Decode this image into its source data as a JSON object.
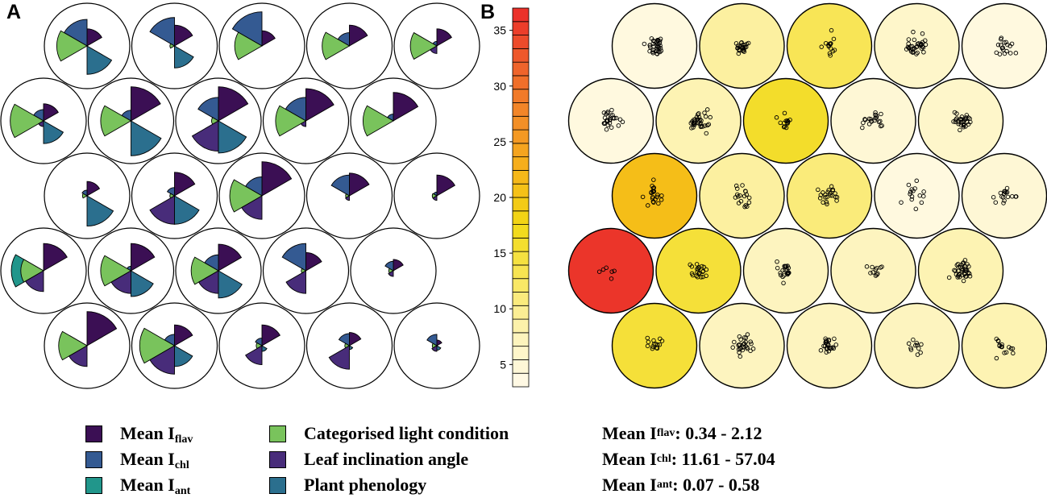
{
  "panel_labels": {
    "a": "A",
    "b": "B"
  },
  "colors": {
    "flav": "#3b0f54",
    "chl": "#345a92",
    "ant": "#21968b",
    "light": "#79c35c",
    "inclination": "#482c7a",
    "phenology": "#2b6f8e"
  },
  "legend": {
    "items": [
      {
        "key": "flav",
        "prefix": "Mean I",
        "sub": "flav"
      },
      {
        "key": "chl",
        "prefix": "Mean I",
        "sub": "chl"
      },
      {
        "key": "ant",
        "prefix": "Mean I",
        "sub": "ant"
      },
      {
        "key": "light",
        "prefix": "Categorised light condition",
        "sub": ""
      },
      {
        "key": "inclination",
        "prefix": "Leaf inclination angle",
        "sub": ""
      },
      {
        "key": "phenology",
        "prefix": "Plant phenology",
        "sub": ""
      }
    ]
  },
  "ranges": [
    {
      "prefix": "Mean I",
      "sub": "flav",
      "value": ": 0.34 - 2.12"
    },
    {
      "prefix": "Mean I",
      "sub": "chl",
      "value": ": 11.61 - 57.04"
    },
    {
      "prefix": "Mean I",
      "sub": "ant",
      "value": ": 0.07 - 0.58"
    }
  ],
  "colorbar": {
    "min": 3,
    "max": 37,
    "ticks": [
      5,
      10,
      15,
      20,
      25,
      30,
      35
    ],
    "tick_labels": [
      "5",
      "10",
      "15",
      "20",
      "25",
      "30",
      "35"
    ],
    "stops": [
      "#fffaea",
      "#fdf3b6",
      "#f8e65a",
      "#f1d914",
      "#f7b31a",
      "#f28a28",
      "#ee5f2b",
      "#ea2a2a"
    ]
  },
  "chart_data": {
    "type": "self-organizing-map",
    "panel_a": {
      "type": "fan",
      "variables": [
        "flav",
        "chl",
        "ant",
        "light",
        "inclination",
        "phenology"
      ],
      "nodes": [
        [
          {
            "flav": 0.45,
            "chl": 0.7,
            "ant": 0,
            "light": 0.8,
            "inclination": 0,
            "phenology": 0.75
          },
          {
            "flav": 0.55,
            "chl": 0.75,
            "ant": 0,
            "light": 0.12,
            "inclination": 0,
            "phenology": 0.58
          },
          {
            "flav": 0.4,
            "chl": 0.9,
            "ant": 0,
            "light": 0.72,
            "inclination": 0,
            "phenology": 0
          },
          {
            "flav": 0.55,
            "chl": 0.35,
            "ant": 0,
            "light": 0.72,
            "inclination": 0,
            "phenology": 0
          },
          {
            "flav": 0.45,
            "chl": 0.12,
            "ant": 0.1,
            "light": 0.7,
            "inclination": 0.2,
            "phenology": 0
          }
        ],
        [
          {
            "flav": 0.45,
            "chl": 0.3,
            "ant": 0,
            "light": 0.88,
            "inclination": 0.15,
            "phenology": 0.6
          },
          {
            "flav": 0.9,
            "chl": 0.28,
            "ant": 0,
            "light": 0.8,
            "inclination": 0,
            "phenology": 0.92
          },
          {
            "flav": 0.9,
            "chl": 0.62,
            "ant": 0,
            "light": 0.18,
            "inclination": 0.8,
            "phenology": 0.85
          },
          {
            "flav": 0.85,
            "chl": 0.62,
            "ant": 0,
            "light": 0.8,
            "inclination": 0.15,
            "phenology": 0
          },
          {
            "flav": 0.75,
            "chl": 0.18,
            "ant": 0,
            "light": 0.8,
            "inclination": 0,
            "phenology": 0
          }
        ],
        [
          {
            "flav": 0.38,
            "chl": 0.15,
            "ant": 0,
            "light": 0.12,
            "inclination": 0,
            "phenology": 0.8
          },
          {
            "flav": 0.62,
            "chl": 0.22,
            "ant": 0.12,
            "light": 0.12,
            "inclination": 0.75,
            "phenology": 0.75
          },
          {
            "flav": 0.9,
            "chl": 0.5,
            "ant": 0,
            "light": 0.85,
            "inclination": 0.62,
            "phenology": 0
          },
          {
            "flav": 0.6,
            "chl": 0.55,
            "ant": 0,
            "light": 0.1,
            "inclination": 0.12,
            "phenology": 0
          },
          {
            "flav": 0.55,
            "chl": 0.1,
            "ant": 0.12,
            "light": 0.12,
            "inclination": 0.12,
            "phenology": 0
          }
        ],
        [
          {
            "flav": 0.72,
            "chl": 0,
            "ant": 0.85,
            "light": 0.6,
            "inclination": 0.55,
            "phenology": 0
          },
          {
            "flav": 0.72,
            "chl": 0.12,
            "ant": 0,
            "light": 0.8,
            "inclination": 0.6,
            "phenology": 0.68
          },
          {
            "flav": 0.7,
            "chl": 0.42,
            "ant": 0,
            "light": 0.72,
            "inclination": 0.6,
            "phenology": 0.72
          },
          {
            "flav": 0.48,
            "chl": 0.72,
            "ant": 0,
            "light": 0.12,
            "inclination": 0.6,
            "phenology": 0
          },
          {
            "flav": 0.3,
            "chl": 0.25,
            "ant": 0,
            "light": 0.12,
            "inclination": 0.15,
            "phenology": 0
          }
        ],
        [
          {
            "flav": 0.9,
            "chl": 0,
            "ant": 0.52,
            "light": 0.75,
            "inclination": 0.55,
            "phenology": 0
          },
          {
            "flav": 0.55,
            "chl": 0.3,
            "ant": 0,
            "light": 0.92,
            "inclination": 0.75,
            "phenology": 0.55
          },
          {
            "flav": 0.55,
            "chl": 0.2,
            "ant": 0,
            "light": 0.15,
            "inclination": 0.5,
            "phenology": 0.15
          },
          {
            "flav": 0.35,
            "chl": 0.32,
            "ant": 0,
            "light": 0.12,
            "inclination": 0.62,
            "phenology": 0.1
          },
          {
            "flav": 0.15,
            "chl": 0.3,
            "ant": 0,
            "light": 0.12,
            "inclination": 0.15,
            "phenology": 0.12
          }
        ]
      ]
    },
    "panel_b": {
      "type": "heatmap",
      "values": [
        [
          4,
          9,
          13,
          6,
          4
        ],
        [
          4,
          8,
          16,
          5,
          6
        ],
        [
          21,
          9,
          11,
          4,
          5
        ],
        [
          36,
          15,
          7,
          7,
          8
        ],
        [
          15,
          7,
          7,
          7,
          8
        ]
      ],
      "sample_counts": [
        [
          35,
          24,
          14,
          34,
          18
        ],
        [
          27,
          34,
          14,
          21,
          32
        ],
        [
          21,
          18,
          22,
          15,
          17
        ],
        [
          6,
          22,
          22,
          11,
          37
        ],
        [
          14,
          27,
          24,
          11,
          16
        ]
      ],
      "sample_spread": [
        [
          0.5,
          0.32,
          0.6,
          0.5,
          0.6
        ],
        [
          0.5,
          0.55,
          0.55,
          0.55,
          0.45
        ],
        [
          0.55,
          0.5,
          0.45,
          0.6,
          0.5
        ],
        [
          0.5,
          0.45,
          0.45,
          0.5,
          0.5
        ],
        [
          0.45,
          0.45,
          0.45,
          0.45,
          0.55
        ]
      ]
    }
  }
}
